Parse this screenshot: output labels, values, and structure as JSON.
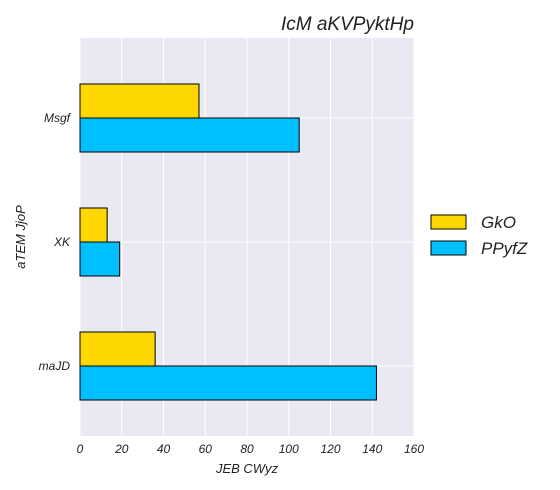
{
  "chart_data": {
    "type": "bar",
    "orientation": "horizontal",
    "title": "IcM aKVPyktHp",
    "xlabel": "JEB  CWyz",
    "ylabel": "aTEM JjoP",
    "categories": [
      "Msgf",
      "XK",
      "maJD"
    ],
    "series": [
      {
        "name": "GkO",
        "color": "#ffd700",
        "values": [
          57,
          13,
          36
        ]
      },
      {
        "name": "PPyfZ",
        "color": "#00bfff",
        "values": [
          105,
          19,
          142
        ]
      }
    ],
    "xlim": [
      0,
      160
    ],
    "xticks": [
      0,
      20,
      40,
      60,
      80,
      100,
      120,
      140,
      160
    ],
    "grid": true,
    "legend_position": "right"
  }
}
